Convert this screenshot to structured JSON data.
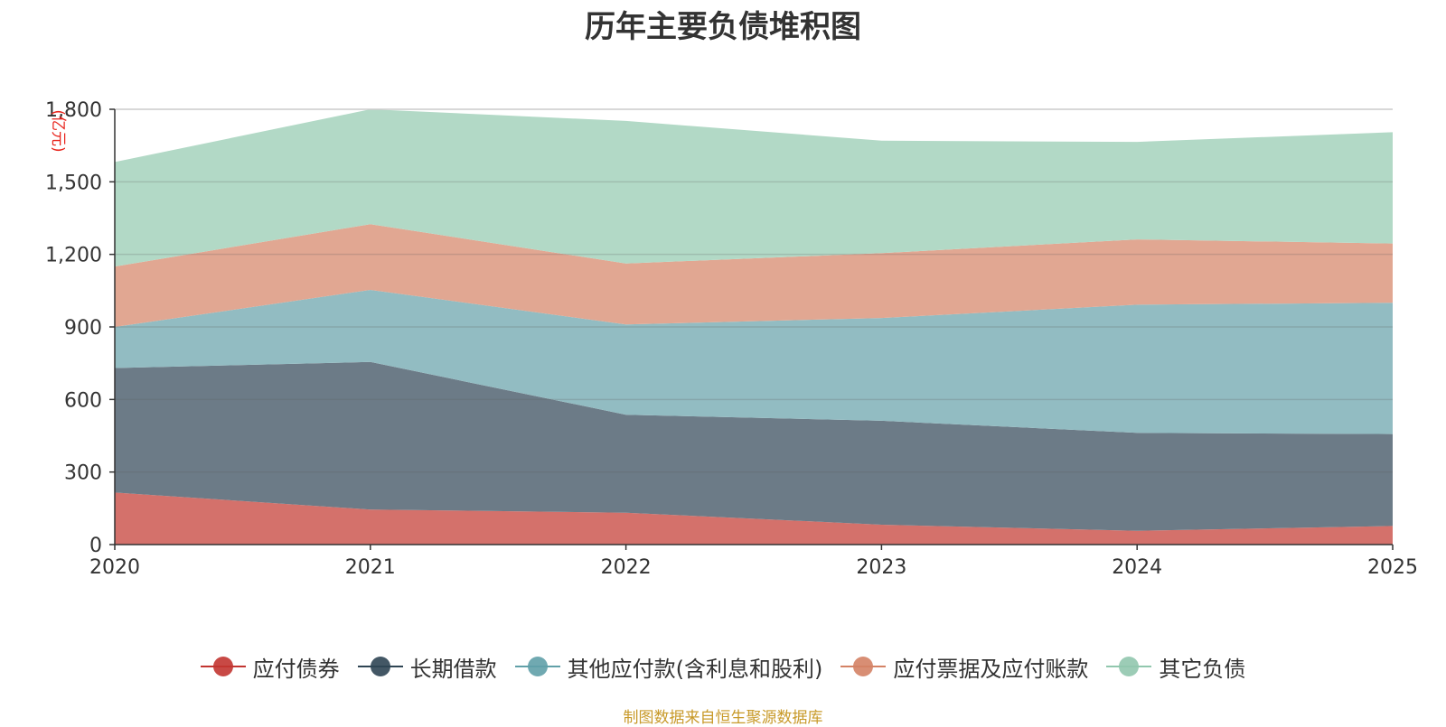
{
  "chart_data": {
    "type": "area",
    "stacked": true,
    "title": "历年主要负债堆积图",
    "unit_label": "(亿元)",
    "x": [
      "2020",
      "2021",
      "2022",
      "2023",
      "2024",
      "2025"
    ],
    "y_ticks": [
      "0",
      "300",
      "600",
      "900",
      "1,200",
      "1,500",
      "1,800"
    ],
    "ylim": [
      0,
      1800
    ],
    "grid": true,
    "legend_position": "bottom",
    "series": [
      {
        "name": "应付债券",
        "color": "#c23531",
        "fill": "#d4716b",
        "values": [
          215,
          145,
          132,
          82,
          57,
          77
        ]
      },
      {
        "name": "长期借款",
        "color": "#2f4554",
        "fill": "#6c7b87",
        "values": [
          515,
          610,
          405,
          430,
          405,
          380
        ]
      },
      {
        "name": "其他应付款(含利息和股利)",
        "color": "#61a0a8",
        "fill": "#92bcc2",
        "values": [
          170,
          298,
          373,
          425,
          530,
          543
        ]
      },
      {
        "name": "应付票据及应付账款",
        "color": "#d48265",
        "fill": "#e1a792",
        "values": [
          250,
          272,
          252,
          268,
          270,
          245
        ]
      },
      {
        "name": "其它负债",
        "color": "#91c7ae",
        "fill": "#b2d9c6",
        "values": [
          432,
          475,
          590,
          465,
          403,
          460
        ]
      }
    ]
  },
  "footer": {
    "source": "制图数据来自恒生聚源数据库"
  }
}
